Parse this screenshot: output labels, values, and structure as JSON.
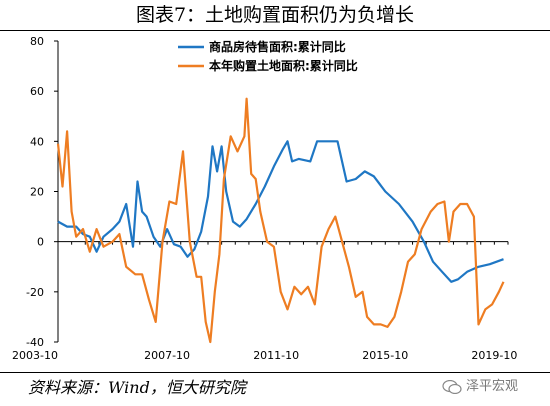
{
  "page_title": "图表7：土地购置面积仍为负增长",
  "source_note": "资料来源：Wind，恒大研究院",
  "watermark_text": "泽平宏观",
  "chart_data": {
    "type": "line",
    "title": "",
    "xlabel": "",
    "ylabel": "",
    "ylim": [
      -40,
      80
    ],
    "yticks": [
      -40,
      -20,
      0,
      20,
      40,
      60,
      80
    ],
    "xlim": [
      "2003-10",
      "2020-04"
    ],
    "xticks": [
      "2003-10",
      "2007-10",
      "2011-10",
      "2015-10",
      "2019-10"
    ],
    "grid": false,
    "legend_position": "top-center",
    "series": [
      {
        "name": "商品房待售面积:累计同比",
        "color": "#1f77c4",
        "points": [
          [
            "2003-10",
            8
          ],
          [
            "2004-02",
            6
          ],
          [
            "2004-06",
            6
          ],
          [
            "2004-09",
            3
          ],
          [
            "2004-12",
            2
          ],
          [
            "2005-03",
            -4
          ],
          [
            "2005-06",
            2
          ],
          [
            "2005-10",
            5
          ],
          [
            "2006-01",
            8
          ],
          [
            "2006-04",
            15
          ],
          [
            "2006-07",
            -2
          ],
          [
            "2006-09",
            24
          ],
          [
            "2006-11",
            12
          ],
          [
            "2007-01",
            10
          ],
          [
            "2007-04",
            2
          ],
          [
            "2007-07",
            -2
          ],
          [
            "2007-10",
            5
          ],
          [
            "2008-01",
            -1
          ],
          [
            "2008-04",
            -2
          ],
          [
            "2008-07",
            -6
          ],
          [
            "2008-10",
            -3
          ],
          [
            "2009-01",
            4
          ],
          [
            "2009-04",
            18
          ],
          [
            "2009-06",
            38
          ],
          [
            "2009-08",
            28
          ],
          [
            "2009-10",
            38
          ],
          [
            "2009-12",
            20
          ],
          [
            "2010-03",
            8
          ],
          [
            "2010-06",
            6
          ],
          [
            "2010-09",
            9
          ],
          [
            "2011-01",
            15
          ],
          [
            "2011-05",
            22
          ],
          [
            "2011-09",
            30
          ],
          [
            "2012-01",
            37
          ],
          [
            "2012-03",
            40
          ],
          [
            "2012-05",
            32
          ],
          [
            "2012-08",
            33
          ],
          [
            "2013-01",
            32
          ],
          [
            "2013-04",
            40
          ],
          [
            "2013-09",
            40
          ],
          [
            "2014-01",
            40
          ],
          [
            "2014-05",
            24
          ],
          [
            "2014-09",
            25
          ],
          [
            "2015-01",
            28
          ],
          [
            "2015-05",
            26
          ],
          [
            "2015-10",
            20
          ],
          [
            "2016-04",
            15
          ],
          [
            "2016-10",
            8
          ],
          [
            "2017-03",
            0
          ],
          [
            "2017-07",
            -8
          ],
          [
            "2017-11",
            -12
          ],
          [
            "2018-03",
            -16
          ],
          [
            "2018-06",
            -15
          ],
          [
            "2018-10",
            -12
          ],
          [
            "2019-03",
            -10
          ],
          [
            "2019-08",
            -9
          ],
          [
            "2020-02",
            -7
          ]
        ]
      },
      {
        "name": "本年购置土地面积:累计同比",
        "color": "#ee7d22",
        "points": [
          [
            "2003-10",
            39
          ],
          [
            "2003-12",
            22
          ],
          [
            "2004-02",
            44
          ],
          [
            "2004-04",
            12
          ],
          [
            "2004-06",
            2
          ],
          [
            "2004-09",
            5
          ],
          [
            "2004-12",
            -4
          ],
          [
            "2005-03",
            5
          ],
          [
            "2005-06",
            -2
          ],
          [
            "2005-10",
            0
          ],
          [
            "2006-01",
            3
          ],
          [
            "2006-04",
            -10
          ],
          [
            "2006-08",
            -13
          ],
          [
            "2006-11",
            -13
          ],
          [
            "2007-02",
            -23
          ],
          [
            "2007-05",
            -32
          ],
          [
            "2007-08",
            0
          ],
          [
            "2007-11",
            16
          ],
          [
            "2008-02",
            15
          ],
          [
            "2008-05",
            36
          ],
          [
            "2008-08",
            0
          ],
          [
            "2008-11",
            -14
          ],
          [
            "2009-01",
            -14
          ],
          [
            "2009-03",
            -32
          ],
          [
            "2009-05",
            -40
          ],
          [
            "2009-07",
            -20
          ],
          [
            "2009-09",
            -5
          ],
          [
            "2009-11",
            25
          ],
          [
            "2010-02",
            42
          ],
          [
            "2010-05",
            36
          ],
          [
            "2010-08",
            42
          ],
          [
            "2010-09",
            57
          ],
          [
            "2010-11",
            27
          ],
          [
            "2011-01",
            25
          ],
          [
            "2011-03",
            12
          ],
          [
            "2011-06",
            0
          ],
          [
            "2011-09",
            -2
          ],
          [
            "2011-12",
            -20
          ],
          [
            "2012-03",
            -27
          ],
          [
            "2012-06",
            -18
          ],
          [
            "2012-09",
            -21
          ],
          [
            "2012-12",
            -18
          ],
          [
            "2013-03",
            -25
          ],
          [
            "2013-06",
            -2
          ],
          [
            "2013-09",
            5
          ],
          [
            "2013-12",
            10
          ],
          [
            "2014-03",
            0
          ],
          [
            "2014-06",
            -10
          ],
          [
            "2014-09",
            -22
          ],
          [
            "2014-12",
            -20
          ],
          [
            "2015-02",
            -30
          ],
          [
            "2015-05",
            -33
          ],
          [
            "2015-08",
            -33
          ],
          [
            "2015-11",
            -34
          ],
          [
            "2016-02",
            -30
          ],
          [
            "2016-05",
            -20
          ],
          [
            "2016-08",
            -8
          ],
          [
            "2016-11",
            -5
          ],
          [
            "2017-02",
            5
          ],
          [
            "2017-06",
            12
          ],
          [
            "2017-09",
            15
          ],
          [
            "2017-12",
            16
          ],
          [
            "2018-02",
            0
          ],
          [
            "2018-04",
            12
          ],
          [
            "2018-07",
            15
          ],
          [
            "2018-10",
            15
          ],
          [
            "2019-01",
            10
          ],
          [
            "2019-03",
            -33
          ],
          [
            "2019-06",
            -27
          ],
          [
            "2019-09",
            -25
          ],
          [
            "2019-12",
            -20
          ],
          [
            "2020-02",
            -16
          ]
        ]
      }
    ]
  }
}
